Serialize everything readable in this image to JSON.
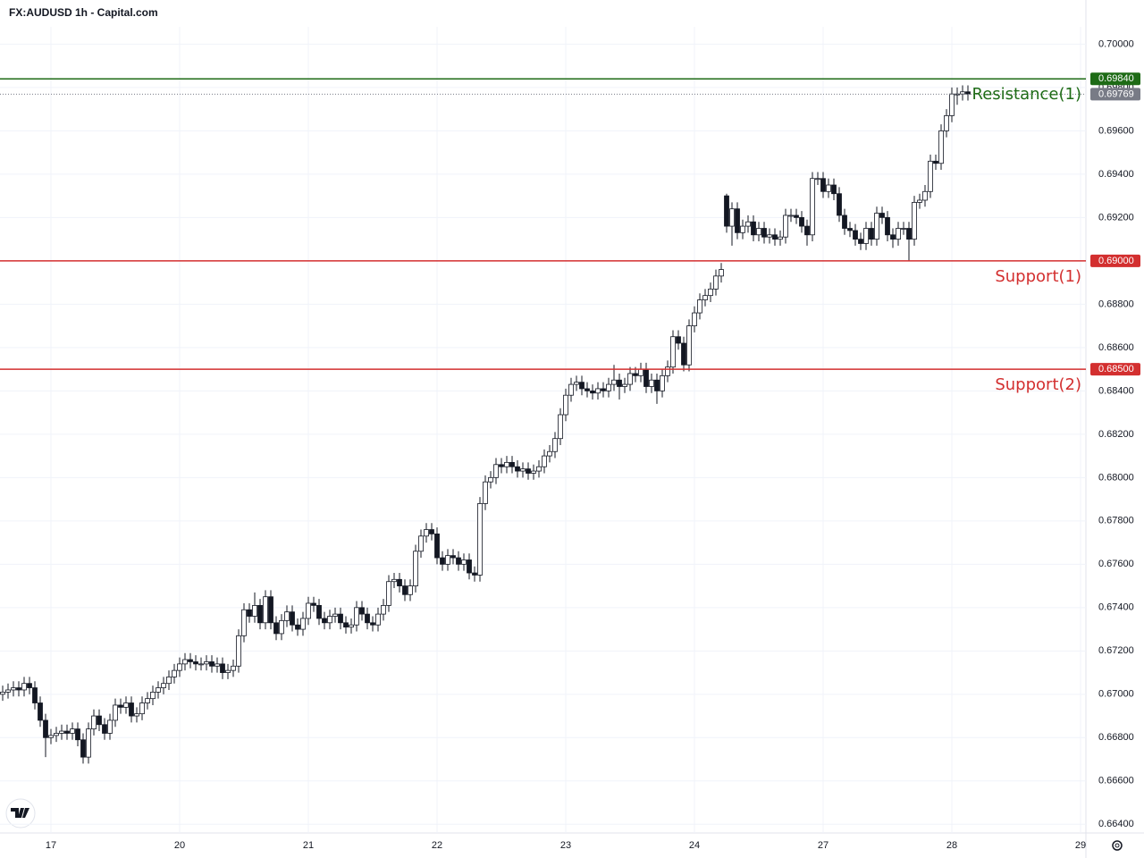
{
  "chart_data": {
    "type": "candlestick",
    "title": "FX:AUDUSD 1h - Capital.com",
    "ohlc": [
      [
        0.67,
        0.6704,
        0.6697,
        0.6701
      ],
      [
        0.6701,
        0.6705,
        0.6698,
        0.6702
      ],
      [
        0.6702,
        0.6706,
        0.6699,
        0.6703
      ],
      [
        0.6703,
        0.6706,
        0.6699,
        0.6702
      ],
      [
        0.6702,
        0.6708,
        0.6699,
        0.6705
      ],
      [
        0.6705,
        0.6708,
        0.67,
        0.6703
      ],
      [
        0.6703,
        0.6706,
        0.6693,
        0.6696
      ],
      [
        0.6696,
        0.6699,
        0.6685,
        0.6688
      ],
      [
        0.6688,
        0.6691,
        0.6671,
        0.668
      ],
      [
        0.668,
        0.6684,
        0.6677,
        0.6681
      ],
      [
        0.6681,
        0.6685,
        0.6678,
        0.6682
      ],
      [
        0.6682,
        0.6686,
        0.6679,
        0.6683
      ],
      [
        0.6683,
        0.6686,
        0.6679,
        0.6682
      ],
      [
        0.6682,
        0.6687,
        0.6679,
        0.6684
      ],
      [
        0.6684,
        0.6687,
        0.6676,
        0.6679
      ],
      [
        0.6679,
        0.6682,
        0.6668,
        0.6671
      ],
      [
        0.6671,
        0.6687,
        0.6668,
        0.6684
      ],
      [
        0.6684,
        0.6693,
        0.6681,
        0.669
      ],
      [
        0.669,
        0.6693,
        0.6683,
        0.6686
      ],
      [
        0.6686,
        0.6689,
        0.6679,
        0.6682
      ],
      [
        0.6682,
        0.6691,
        0.6679,
        0.6688
      ],
      [
        0.6688,
        0.6698,
        0.6685,
        0.6695
      ],
      [
        0.6695,
        0.6698,
        0.6691,
        0.6694
      ],
      [
        0.6694,
        0.6699,
        0.6691,
        0.6696
      ],
      [
        0.6696,
        0.6699,
        0.6687,
        0.669
      ],
      [
        0.669,
        0.6694,
        0.6687,
        0.6691
      ],
      [
        0.6691,
        0.6699,
        0.6688,
        0.6696
      ],
      [
        0.6696,
        0.6701,
        0.6693,
        0.6698
      ],
      [
        0.6698,
        0.6704,
        0.6695,
        0.6701
      ],
      [
        0.6701,
        0.6706,
        0.6698,
        0.6703
      ],
      [
        0.6703,
        0.6708,
        0.67,
        0.6705
      ],
      [
        0.6705,
        0.6711,
        0.6702,
        0.6708
      ],
      [
        0.6708,
        0.6714,
        0.6705,
        0.6711
      ],
      [
        0.6711,
        0.6717,
        0.6708,
        0.6714
      ],
      [
        0.6714,
        0.6719,
        0.6711,
        0.6716
      ],
      [
        0.6716,
        0.6719,
        0.6712,
        0.6715
      ],
      [
        0.6715,
        0.6718,
        0.6711,
        0.6714
      ],
      [
        0.6714,
        0.6717,
        0.6711,
        0.6714
      ],
      [
        0.6714,
        0.6718,
        0.6711,
        0.6715
      ],
      [
        0.6715,
        0.6718,
        0.671,
        0.6713
      ],
      [
        0.6713,
        0.6717,
        0.671,
        0.6714
      ],
      [
        0.6714,
        0.6717,
        0.6707,
        0.671
      ],
      [
        0.671,
        0.6714,
        0.6707,
        0.6711
      ],
      [
        0.6711,
        0.6716,
        0.6708,
        0.6713
      ],
      [
        0.6713,
        0.673,
        0.671,
        0.6727
      ],
      [
        0.6727,
        0.6742,
        0.6724,
        0.6739
      ],
      [
        0.6739,
        0.6742,
        0.6733,
        0.6736
      ],
      [
        0.6736,
        0.6747,
        0.6733,
        0.6741
      ],
      [
        0.6741,
        0.6744,
        0.673,
        0.6733
      ],
      [
        0.6733,
        0.6748,
        0.673,
        0.6745
      ],
      [
        0.6745,
        0.6748,
        0.673,
        0.6733
      ],
      [
        0.6733,
        0.6736,
        0.6725,
        0.6728
      ],
      [
        0.6728,
        0.6737,
        0.6725,
        0.6734
      ],
      [
        0.6734,
        0.6741,
        0.6731,
        0.6738
      ],
      [
        0.6738,
        0.6741,
        0.6729,
        0.6732
      ],
      [
        0.6732,
        0.6735,
        0.6727,
        0.673
      ],
      [
        0.673,
        0.6738,
        0.6727,
        0.6735
      ],
      [
        0.6735,
        0.6745,
        0.6732,
        0.6742
      ],
      [
        0.6742,
        0.6745,
        0.6738,
        0.6741
      ],
      [
        0.6741,
        0.6744,
        0.6732,
        0.6735
      ],
      [
        0.6735,
        0.6738,
        0.673,
        0.6733
      ],
      [
        0.6733,
        0.6739,
        0.673,
        0.6736
      ],
      [
        0.6736,
        0.674,
        0.6733,
        0.6737
      ],
      [
        0.6737,
        0.674,
        0.673,
        0.6733
      ],
      [
        0.6733,
        0.6736,
        0.6728,
        0.6731
      ],
      [
        0.6731,
        0.6735,
        0.6728,
        0.6732
      ],
      [
        0.6732,
        0.6743,
        0.6729,
        0.674
      ],
      [
        0.674,
        0.6743,
        0.6734,
        0.6737
      ],
      [
        0.6737,
        0.674,
        0.673,
        0.6733
      ],
      [
        0.6733,
        0.6736,
        0.6729,
        0.6732
      ],
      [
        0.6732,
        0.674,
        0.6729,
        0.6737
      ],
      [
        0.6737,
        0.6744,
        0.6734,
        0.6741
      ],
      [
        0.6741,
        0.6755,
        0.6738,
        0.6752
      ],
      [
        0.6752,
        0.6756,
        0.6749,
        0.6753
      ],
      [
        0.6753,
        0.6756,
        0.6747,
        0.675
      ],
      [
        0.675,
        0.6753,
        0.6743,
        0.6746
      ],
      [
        0.6746,
        0.6753,
        0.6743,
        0.675
      ],
      [
        0.675,
        0.6769,
        0.6747,
        0.6766
      ],
      [
        0.6766,
        0.6776,
        0.6763,
        0.6773
      ],
      [
        0.6773,
        0.6779,
        0.677,
        0.6776
      ],
      [
        0.6776,
        0.6779,
        0.6771,
        0.6774
      ],
      [
        0.6774,
        0.6777,
        0.676,
        0.6763
      ],
      [
        0.6763,
        0.6766,
        0.6757,
        0.676
      ],
      [
        0.676,
        0.6767,
        0.6757,
        0.6764
      ],
      [
        0.6764,
        0.6767,
        0.676,
        0.6763
      ],
      [
        0.6763,
        0.6766,
        0.6757,
        0.676
      ],
      [
        0.676,
        0.6765,
        0.6757,
        0.6762
      ],
      [
        0.6762,
        0.6765,
        0.6753,
        0.6756
      ],
      [
        0.6756,
        0.6759,
        0.6752,
        0.6755
      ],
      [
        0.6755,
        0.6791,
        0.6752,
        0.6788
      ],
      [
        0.6788,
        0.6801,
        0.6785,
        0.6798
      ],
      [
        0.6798,
        0.6803,
        0.6795,
        0.68
      ],
      [
        0.68,
        0.6809,
        0.6797,
        0.6806
      ],
      [
        0.6806,
        0.6809,
        0.6802,
        0.6805
      ],
      [
        0.6805,
        0.681,
        0.6802,
        0.6807
      ],
      [
        0.6807,
        0.681,
        0.6802,
        0.6805
      ],
      [
        0.6805,
        0.6808,
        0.68,
        0.6803
      ],
      [
        0.6803,
        0.6807,
        0.68,
        0.6804
      ],
      [
        0.6804,
        0.6807,
        0.6799,
        0.6802
      ],
      [
        0.6802,
        0.6806,
        0.6799,
        0.6803
      ],
      [
        0.6803,
        0.6808,
        0.68,
        0.6805
      ],
      [
        0.6805,
        0.6813,
        0.6802,
        0.681
      ],
      [
        0.681,
        0.6815,
        0.6807,
        0.6812
      ],
      [
        0.6812,
        0.6821,
        0.6809,
        0.6818
      ],
      [
        0.6818,
        0.6832,
        0.6815,
        0.6829
      ],
      [
        0.6829,
        0.6841,
        0.6826,
        0.6838
      ],
      [
        0.6838,
        0.6846,
        0.6835,
        0.6843
      ],
      [
        0.6843,
        0.6847,
        0.684,
        0.6844
      ],
      [
        0.6844,
        0.6847,
        0.6838,
        0.6841
      ],
      [
        0.6841,
        0.6844,
        0.6837,
        0.684
      ],
      [
        0.684,
        0.6843,
        0.6836,
        0.6839
      ],
      [
        0.6839,
        0.6844,
        0.6836,
        0.6841
      ],
      [
        0.6841,
        0.6844,
        0.6837,
        0.684
      ],
      [
        0.684,
        0.6846,
        0.6837,
        0.6843
      ],
      [
        0.6843,
        0.6852,
        0.684,
        0.6845
      ],
      [
        0.6845,
        0.6848,
        0.6836,
        0.6842
      ],
      [
        0.6842,
        0.6846,
        0.6839,
        0.6843
      ],
      [
        0.6843,
        0.6851,
        0.684,
        0.6848
      ],
      [
        0.6848,
        0.6851,
        0.6844,
        0.6847
      ],
      [
        0.6847,
        0.6853,
        0.6844,
        0.685
      ],
      [
        0.685,
        0.6853,
        0.6839,
        0.6842
      ],
      [
        0.6842,
        0.6848,
        0.6839,
        0.6845
      ],
      [
        0.6845,
        0.6848,
        0.6834,
        0.684
      ],
      [
        0.684,
        0.685,
        0.6837,
        0.6847
      ],
      [
        0.6847,
        0.6854,
        0.6844,
        0.6851
      ],
      [
        0.6851,
        0.6868,
        0.6848,
        0.6865
      ],
      [
        0.6865,
        0.6868,
        0.6859,
        0.6862
      ],
      [
        0.6862,
        0.6865,
        0.6849,
        0.6852
      ],
      [
        0.6852,
        0.6873,
        0.6849,
        0.687
      ],
      [
        0.687,
        0.6879,
        0.6867,
        0.6876
      ],
      [
        0.6876,
        0.6885,
        0.6873,
        0.6882
      ],
      [
        0.6882,
        0.6887,
        0.6879,
        0.6884
      ],
      [
        0.6884,
        0.689,
        0.6881,
        0.6887
      ],
      [
        0.6887,
        0.6896,
        0.6884,
        0.6893
      ],
      [
        0.6893,
        0.6899,
        0.689,
        0.6896
      ],
      [
        0.693,
        0.6931,
        0.6913,
        0.6916
      ],
      [
        0.6916,
        0.6927,
        0.6907,
        0.6924
      ],
      [
        0.6924,
        0.6927,
        0.691,
        0.6913
      ],
      [
        0.6913,
        0.6919,
        0.691,
        0.6916
      ],
      [
        0.6916,
        0.6921,
        0.6913,
        0.6918
      ],
      [
        0.6918,
        0.6921,
        0.6909,
        0.6912
      ],
      [
        0.6912,
        0.6918,
        0.6909,
        0.6915
      ],
      [
        0.6915,
        0.6918,
        0.6908,
        0.6911
      ],
      [
        0.6911,
        0.6915,
        0.6908,
        0.6912
      ],
      [
        0.6912,
        0.6915,
        0.6907,
        0.691
      ],
      [
        0.691,
        0.6914,
        0.6907,
        0.6911
      ],
      [
        0.6911,
        0.6924,
        0.6908,
        0.6921
      ],
      [
        0.6921,
        0.6924,
        0.6918,
        0.6921
      ],
      [
        0.6921,
        0.6924,
        0.6917,
        0.692
      ],
      [
        0.692,
        0.6923,
        0.6913,
        0.6916
      ],
      [
        0.6916,
        0.6919,
        0.6907,
        0.6912
      ],
      [
        0.6912,
        0.6941,
        0.6909,
        0.6938
      ],
      [
        0.6938,
        0.6941,
        0.6935,
        0.6938
      ],
      [
        0.6938,
        0.6941,
        0.6929,
        0.6932
      ],
      [
        0.6932,
        0.6938,
        0.6929,
        0.6935
      ],
      [
        0.6935,
        0.6938,
        0.6928,
        0.6931
      ],
      [
        0.6931,
        0.6934,
        0.6918,
        0.6921
      ],
      [
        0.6921,
        0.6924,
        0.6912,
        0.6915
      ],
      [
        0.6915,
        0.6918,
        0.6911,
        0.6914
      ],
      [
        0.6914,
        0.6917,
        0.6907,
        0.691
      ],
      [
        0.691,
        0.6913,
        0.6905,
        0.6908
      ],
      [
        0.6908,
        0.6918,
        0.6905,
        0.6915
      ],
      [
        0.6915,
        0.6918,
        0.6907,
        0.691
      ],
      [
        0.691,
        0.6925,
        0.6907,
        0.6922
      ],
      [
        0.6922,
        0.6925,
        0.6917,
        0.692
      ],
      [
        0.692,
        0.6923,
        0.6909,
        0.6912
      ],
      [
        0.6912,
        0.6915,
        0.6906,
        0.691
      ],
      [
        0.691,
        0.6918,
        0.6907,
        0.6915
      ],
      [
        0.6915,
        0.6918,
        0.6912,
        0.6915
      ],
      [
        0.6915,
        0.6918,
        0.69,
        0.691
      ],
      [
        0.691,
        0.693,
        0.6907,
        0.6927
      ],
      [
        0.6927,
        0.6931,
        0.6924,
        0.6928
      ],
      [
        0.6928,
        0.6935,
        0.6925,
        0.6932
      ],
      [
        0.6932,
        0.6949,
        0.6929,
        0.6946
      ],
      [
        0.6946,
        0.6949,
        0.6942,
        0.6945
      ],
      [
        0.6945,
        0.6963,
        0.6942,
        0.696
      ],
      [
        0.696,
        0.697,
        0.6957,
        0.6967
      ],
      [
        0.6967,
        0.698,
        0.6964,
        0.6977
      ],
      [
        0.6977,
        0.698,
        0.6972,
        0.6977
      ],
      [
        0.6977,
        0.6981,
        0.6974,
        0.6978
      ],
      [
        0.6978,
        0.6981,
        0.6974,
        0.6977
      ]
    ],
    "up_color": "#ffffff",
    "down_color": "#131722",
    "wick_color": "#131722",
    "xlim": [
      -0.5,
      202
    ],
    "xticks": [
      {
        "value": 9,
        "label": "17"
      },
      {
        "value": 33,
        "label": "20"
      },
      {
        "value": 57,
        "label": "21"
      },
      {
        "value": 81,
        "label": "22"
      },
      {
        "value": 105,
        "label": "23"
      },
      {
        "value": 129,
        "label": "24"
      },
      {
        "value": 153,
        "label": "27"
      },
      {
        "value": 177,
        "label": "28"
      },
      {
        "value": 201,
        "label": "29"
      }
    ],
    "ylim": [
      0.6636,
      0.7008
    ],
    "yticks": [
      {
        "value": 0.664,
        "label": "0.66400"
      },
      {
        "value": 0.666,
        "label": "0.66600"
      },
      {
        "value": 0.668,
        "label": "0.66800"
      },
      {
        "value": 0.67,
        "label": "0.67000"
      },
      {
        "value": 0.672,
        "label": "0.67200"
      },
      {
        "value": 0.674,
        "label": "0.67400"
      },
      {
        "value": 0.676,
        "label": "0.67600"
      },
      {
        "value": 0.678,
        "label": "0.67800"
      },
      {
        "value": 0.68,
        "label": "0.68000"
      },
      {
        "value": 0.682,
        "label": "0.68200"
      },
      {
        "value": 0.684,
        "label": "0.68400"
      },
      {
        "value": 0.686,
        "label": "0.68600"
      },
      {
        "value": 0.688,
        "label": "0.68800"
      },
      {
        "value": 0.69,
        "label": "0.69000"
      },
      {
        "value": 0.692,
        "label": "0.69200"
      },
      {
        "value": 0.694,
        "label": "0.69400"
      },
      {
        "value": 0.696,
        "label": "0.69600"
      },
      {
        "value": 0.698,
        "label": "0.69800"
      },
      {
        "value": 0.7,
        "label": "0.70000"
      }
    ],
    "grid": true,
    "levels": [
      {
        "name": "Resistance(1)",
        "value": 0.6984,
        "label": "0.69840",
        "color": "#1e6b16"
      },
      {
        "name": "Support(1)",
        "value": 0.69,
        "label": "0.69000",
        "color": "#d32f2f"
      },
      {
        "name": "Support(2)",
        "value": 0.685,
        "label": "0.68500",
        "color": "#d32f2f"
      }
    ],
    "last_price": {
      "value": 0.69769,
      "label": "0.69769",
      "color": "#787b86"
    }
  }
}
